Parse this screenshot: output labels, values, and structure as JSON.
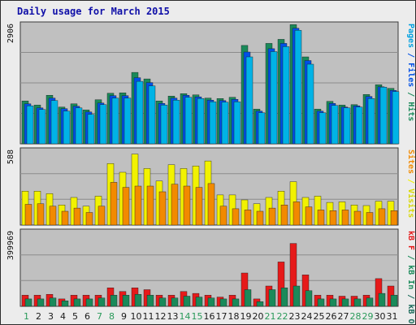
{
  "title": "Daily usage for March 2015",
  "colors": {
    "background": "#ececec",
    "panel": "#c0c0c0",
    "grid": "#8c8c8c",
    "axis_frame": "#3a3a3a",
    "title": "#1010a8",
    "pages": "#00b3e6",
    "files": "#0050e6",
    "hits": "#1a8a5a",
    "visits": "#f2f200",
    "sites": "#f28a00",
    "kb_in": "#1a8a5a",
    "kb_out": "#1a6a5a",
    "kb_f": "#e61a1a",
    "day_black": "#1a1a1a",
    "day_green": "#2a9a5a"
  },
  "chart_data": [
    {
      "type": "bar",
      "panel": "top",
      "ymax_label": "2906",
      "ymax": 2906,
      "right_label": [
        {
          "text": "Pages",
          "color": "#00a0e0"
        },
        {
          "text": " / ",
          "color": "#0050e6"
        },
        {
          "text": "Files",
          "color": "#0050e6"
        },
        {
          "text": " / ",
          "color": "#1a8a5a"
        },
        {
          "text": "Hits",
          "color": "#1a8a5a"
        }
      ],
      "categories": [
        "1",
        "2",
        "3",
        "4",
        "5",
        "6",
        "7",
        "8",
        "9",
        "10",
        "11",
        "12",
        "13",
        "14",
        "15",
        "16",
        "17",
        "18",
        "19",
        "20",
        "21",
        "22",
        "23",
        "24",
        "25",
        "26",
        "27",
        "28",
        "29",
        "30",
        "31"
      ],
      "series": [
        {
          "name": "Hits",
          "values": [
            1050,
            950,
            1190,
            900,
            980,
            830,
            1080,
            1240,
            1250,
            1750,
            1590,
            1050,
            1170,
            1230,
            1200,
            1120,
            1110,
            1140,
            2410,
            850,
            2460,
            2560,
            2920,
            2130,
            850,
            1040,
            950,
            960,
            1210,
            1450,
            1360
          ]
        },
        {
          "name": "Files",
          "values": [
            980,
            880,
            1120,
            860,
            920,
            780,
            1000,
            1180,
            1180,
            1620,
            1500,
            990,
            1120,
            1190,
            1150,
            1070,
            1060,
            1090,
            2250,
            800,
            2330,
            2460,
            2830,
            2040,
            800,
            990,
            900,
            930,
            1160,
            1400,
            1310
          ]
        },
        {
          "name": "Pages",
          "values": [
            930,
            840,
            1060,
            800,
            880,
            720,
            960,
            1120,
            1120,
            1530,
            1420,
            950,
            1070,
            1140,
            1110,
            1030,
            1020,
            1030,
            2130,
            760,
            2260,
            2380,
            2780,
            1950,
            760,
            940,
            880,
            900,
            1110,
            1390,
            1280
          ]
        }
      ]
    },
    {
      "type": "bar",
      "panel": "middle",
      "ymax_label": "588",
      "ymax": 588,
      "right_label": [
        {
          "text": "Sites",
          "color": "#f28a00"
        },
        {
          "text": " / ",
          "color": "#f2f200"
        },
        {
          "text": "Visits",
          "color": "#d8d800"
        }
      ],
      "categories": [
        "1",
        "2",
        "3",
        "4",
        "5",
        "6",
        "7",
        "8",
        "9",
        "10",
        "11",
        "12",
        "13",
        "14",
        "15",
        "16",
        "17",
        "18",
        "19",
        "20",
        "21",
        "22",
        "23",
        "24",
        "25",
        "26",
        "27",
        "28",
        "29",
        "30",
        "31"
      ],
      "series": [
        {
          "name": "Visits",
          "values": [
            270,
            270,
            250,
            160,
            220,
            150,
            230,
            490,
            420,
            565,
            450,
            350,
            480,
            450,
            470,
            510,
            240,
            240,
            200,
            170,
            220,
            270,
            345,
            220,
            230,
            180,
            185,
            160,
            155,
            190,
            190
          ]
        },
        {
          "name": "Sites",
          "values": [
            165,
            170,
            150,
            110,
            135,
            100,
            150,
            340,
            300,
            310,
            310,
            265,
            325,
            310,
            300,
            330,
            150,
            130,
            120,
            110,
            135,
            160,
            185,
            145,
            120,
            115,
            120,
            110,
            100,
            130,
            115
          ]
        }
      ]
    },
    {
      "type": "bar",
      "panel": "bottom",
      "ymax_label": "399969",
      "ymax": 399969,
      "right_label": [
        {
          "text": "kB F",
          "color": "#e61a1a"
        },
        {
          "text": " / ",
          "color": "#1a8a5a"
        },
        {
          "text": "kB In",
          "color": "#1a8a5a"
        },
        {
          "text": " / ",
          "color": "#1a6a5a"
        },
        {
          "text": "kB Out",
          "color": "#1a6a5a"
        }
      ],
      "categories": [
        "1",
        "2",
        "3",
        "4",
        "5",
        "6",
        "7",
        "8",
        "9",
        "10",
        "11",
        "12",
        "13",
        "14",
        "15",
        "16",
        "17",
        "18",
        "19",
        "20",
        "21",
        "22",
        "23",
        "24",
        "25",
        "26",
        "27",
        "28",
        "29",
        "30",
        "31"
      ],
      "day_label_colors": [
        "green",
        "black",
        "black",
        "black",
        "black",
        "black",
        "green",
        "green",
        "black",
        "black",
        "black",
        "black",
        "black",
        "green",
        "green",
        "black",
        "black",
        "black",
        "black",
        "black",
        "green",
        "green",
        "black",
        "black",
        "black",
        "black",
        "black",
        "green",
        "green",
        "black",
        "black"
      ],
      "series": [
        {
          "name": "kB F",
          "values": [
            60000,
            60000,
            65000,
            40000,
            60000,
            60000,
            60000,
            100000,
            80000,
            100000,
            90000,
            60000,
            60000,
            80000,
            70000,
            60000,
            50000,
            60000,
            180000,
            40000,
            110000,
            240000,
            340000,
            170000,
            60000,
            60000,
            55000,
            55000,
            60000,
            150000,
            110000
          ]
        },
        {
          "name": "kB In",
          "values": [
            40000,
            40000,
            45000,
            30000,
            40000,
            40000,
            45000,
            60000,
            60000,
            65000,
            60000,
            45000,
            45000,
            55000,
            50000,
            45000,
            40000,
            40000,
            90000,
            25000,
            90000,
            100000,
            110000,
            85000,
            40000,
            40000,
            40000,
            40000,
            45000,
            70000,
            60000
          ]
        }
      ]
    }
  ]
}
